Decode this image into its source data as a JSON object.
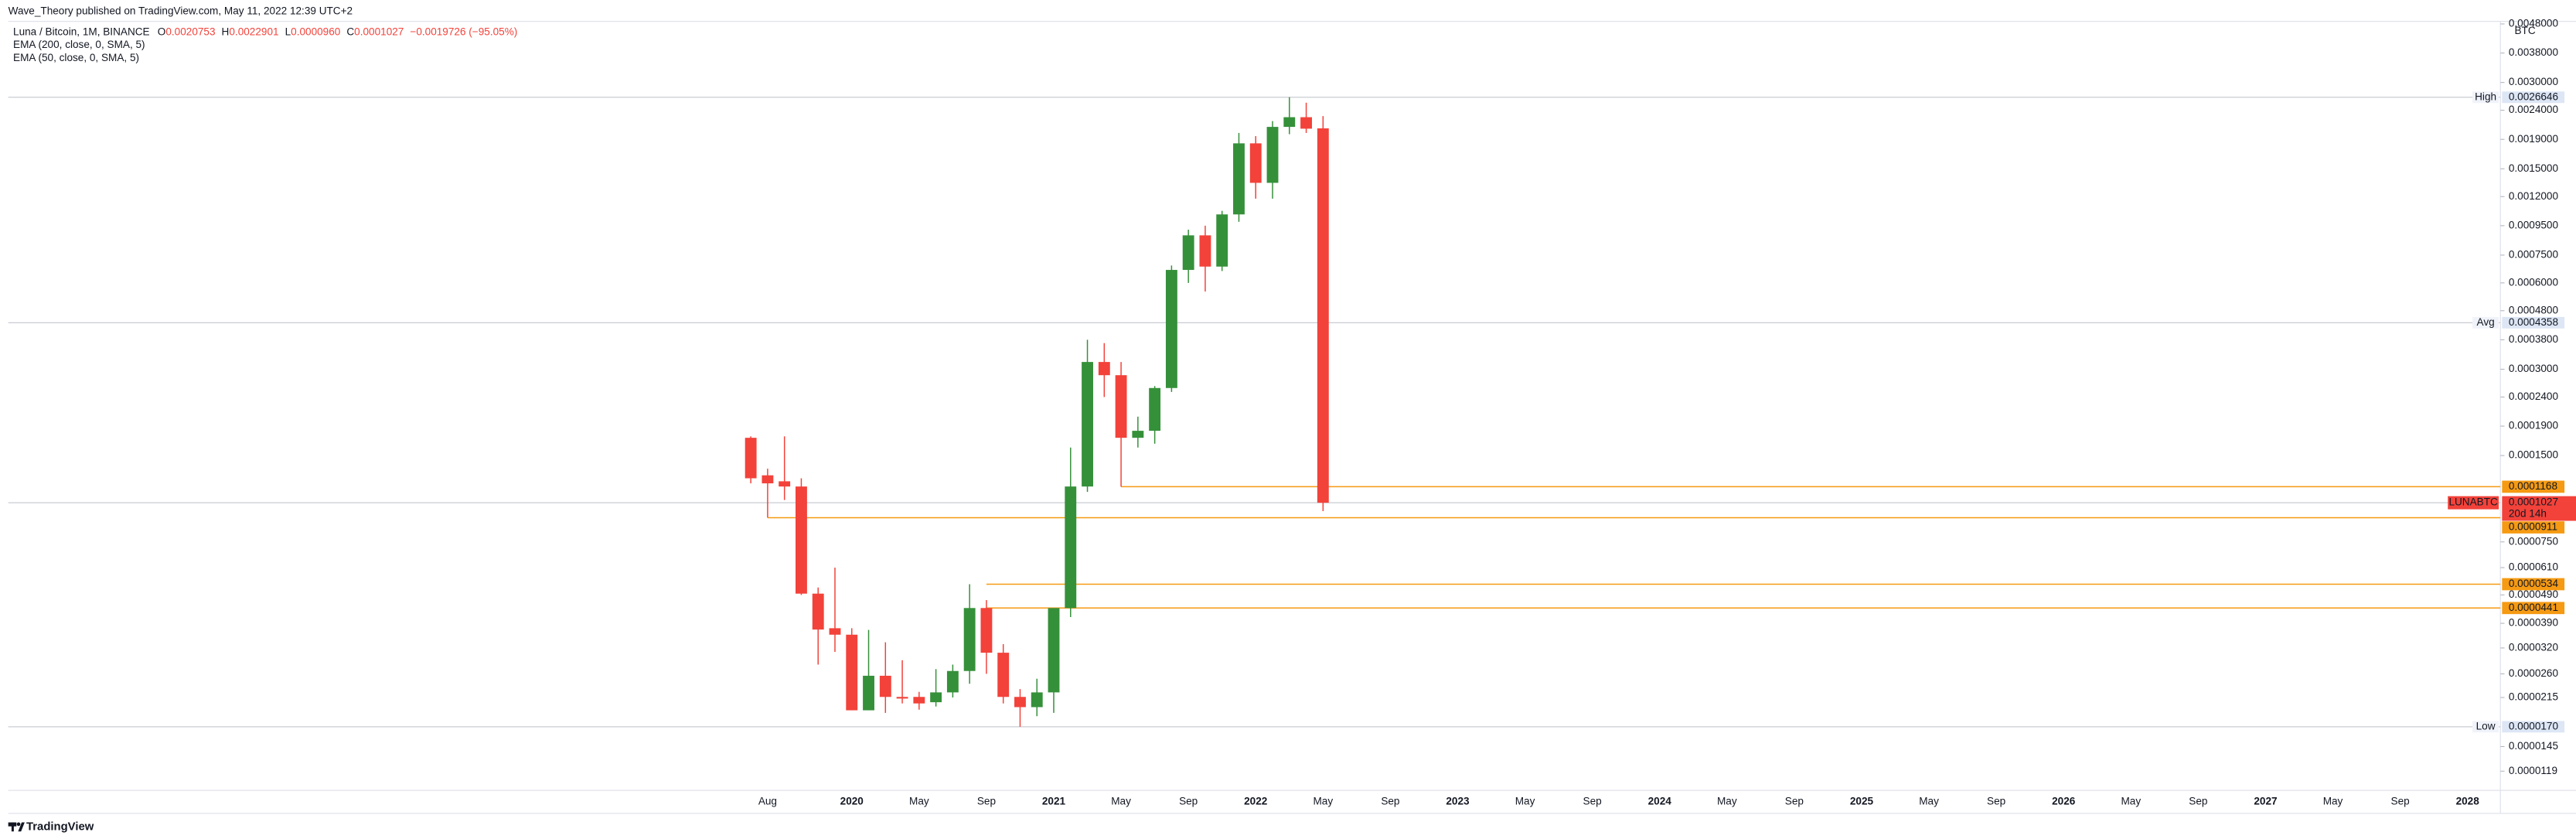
{
  "header": {
    "byline": "Wave_Theory published on TradingView.com, May 11, 2022 12:39 UTC+2",
    "brand": "TradingView"
  },
  "chart_data": {
    "type": "candlestick",
    "title": "Luna / Bitcoin, 1M, BINANCE",
    "ohlc_labels": [
      "O",
      "H",
      "L",
      "C"
    ],
    "legend": {
      "open": "0.0020753",
      "high": "0.0022901",
      "low": "0.0000960",
      "close": "0.0001027",
      "change": "−0.0019726 (−95.05%)"
    },
    "indicators": [
      "EMA (200, close, 0, SMA, 5)",
      "EMA (50, close, 0, SMA, 5)"
    ],
    "unit": "BTC",
    "up_color": "#35903a",
    "down_color": "#f2423a",
    "open": [
      0.000173,
      0.000128,
      0.000122,
      0.000117,
      4.95e-05,
      3.75e-05,
      3.56e-05,
      1.94e-05,
      2.56e-05,
      2.16e-05,
      2.16e-05,
      2.07e-05,
      2.24e-05,
      2.66e-05,
      4.41e-05,
      3.08e-05,
      2.16e-05,
      1.99e-05,
      2.24e-05,
      4.41e-05,
      0.000117,
      0.000318,
      0.000286,
      0.000173,
      0.000183,
      0.000258,
      0.000666,
      0.000879,
      0.000684,
      0.00104,
      0.00184,
      0.00134,
      0.0021,
      0.00227,
      0.0020753
    ],
    "high": [
      0.000175,
      0.000135,
      0.000175,
      0.000125,
      5.2e-05,
      6.1e-05,
      3.75e-05,
      3.7e-05,
      3.35e-05,
      2.9e-05,
      2.25e-05,
      2.7e-05,
      2.8e-05,
      5.34e-05,
      4.7e-05,
      3.3e-05,
      2.3e-05,
      2.5e-05,
      4.4e-05,
      0.00016,
      0.00038,
      0.00037,
      0.000318,
      0.000205,
      0.000262,
      0.00069,
      0.00092,
      0.00095,
      0.00107,
      0.002,
      0.00195,
      0.0022,
      0.0026646,
      0.00255,
      0.0022901
    ],
    "low": [
      0.00012,
      9.11e-05,
      0.000105,
      4.9e-05,
      2.8e-05,
      3.1e-05,
      1.94e-05,
      1.94e-05,
      1.9e-05,
      2.05e-05,
      1.95e-05,
      2e-05,
      2.15e-05,
      2.4e-05,
      2.6e-05,
      2.05e-05,
      1.7e-05,
      1.85e-05,
      1.9e-05,
      4.1e-05,
      0.000112,
      0.00024,
      0.0001168,
      0.00016,
      0.000165,
      0.00025,
      0.0006,
      0.00056,
      0.00066,
      0.00098,
      0.00118,
      0.00118,
      0.00198,
      0.002,
      9.6e-05
    ],
    "close": [
      0.000125,
      0.00012,
      0.000117,
      4.95e-05,
      3.71e-05,
      3.56e-05,
      1.94e-05,
      2.56e-05,
      2.16e-05,
      2.14e-05,
      2.05e-05,
      2.24e-05,
      2.66e-05,
      4.41e-05,
      3.08e-05,
      2.16e-05,
      1.99e-05,
      2.24e-05,
      4.41e-05,
      0.000117,
      0.000318,
      0.000286,
      0.000173,
      0.000183,
      0.000258,
      0.000666,
      0.000879,
      0.000684,
      0.00104,
      0.00184,
      0.00134,
      0.0021,
      0.00227,
      0.00207,
      0.0001027
    ],
    "time_axis": [
      "Aug",
      "2020",
      "May",
      "Sep",
      "2021",
      "May",
      "Sep",
      "2022",
      "May",
      "Sep",
      "2023",
      "May",
      "Sep",
      "2024",
      "May",
      "Sep",
      "2025",
      "May",
      "Sep",
      "2026",
      "May",
      "Sep",
      "2027",
      "May",
      "Sep",
      "2028"
    ],
    "log_scale": true,
    "ylim": [
      1.02e-05,
      0.0049
    ],
    "yticks": [
      {
        "value": 0.0048,
        "label": "0.0048000"
      },
      {
        "value": 0.0038,
        "label": "0.0038000"
      },
      {
        "value": 0.003,
        "label": "0.0030000"
      },
      {
        "value": 0.0024,
        "label": "0.0024000"
      },
      {
        "value": 0.0019,
        "label": "0.0019000"
      },
      {
        "value": 0.0015,
        "label": "0.0015000"
      },
      {
        "value": 0.0012,
        "label": "0.0012000"
      },
      {
        "value": 0.00095,
        "label": "0.0009500"
      },
      {
        "value": 0.00075,
        "label": "0.0007500"
      },
      {
        "value": 0.0006,
        "label": "0.0006000"
      },
      {
        "value": 0.00048,
        "label": "0.0004800"
      },
      {
        "value": 0.00038,
        "label": "0.0003800"
      },
      {
        "value": 0.0003,
        "label": "0.0003000"
      },
      {
        "value": 0.00024,
        "label": "0.0002400"
      },
      {
        "value": 0.00019,
        "label": "0.0001900"
      },
      {
        "value": 0.00015,
        "label": "0.0001500"
      },
      {
        "value": 7.5e-05,
        "label": "0.0000750"
      },
      {
        "value": 6.1e-05,
        "label": "0.0000610"
      },
      {
        "value": 4.9e-05,
        "label": "0.0000490"
      },
      {
        "value": 3.9e-05,
        "label": "0.0000390"
      },
      {
        "value": 3.2e-05,
        "label": "0.0000320"
      },
      {
        "value": 2.6e-05,
        "label": "0.0000260"
      },
      2.15e-05,
      1.45e-05,
      1.19e-05
    ],
    "price_lines": [
      {
        "name": "High",
        "value": 0.0026646
      },
      {
        "name": "Avg",
        "value": 0.0004358
      },
      {
        "name": "Low",
        "value": {
          "value": 1.7e-05,
          "label": "0.0000170"
        }
      }
    ],
    "levels": [
      0.0001168,
      9.11e-05,
      5.34e-05,
      4.41e-05
    ],
    "level_color": "#f59a12",
    "last_price": {
      "name": "LUNABTC",
      "value": 0.0001027,
      "countdown": "20d 14h"
    }
  }
}
